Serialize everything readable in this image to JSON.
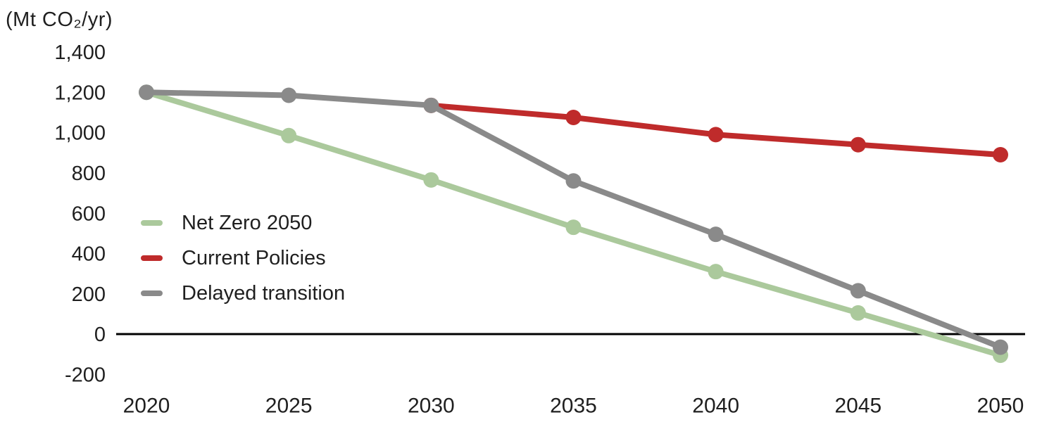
{
  "chart_data": {
    "type": "line",
    "title": "",
    "unit_label": "(Mt CO₂/yr)",
    "xlabel": "",
    "ylabel": "Mt CO₂/yr",
    "grid": false,
    "legend_position": "middle-left",
    "ylim": [
      -200,
      1400
    ],
    "xlim": [
      2020,
      2050
    ],
    "axis_color": "#000000",
    "text_color": "#1f1f1f",
    "y_ticks": [
      {
        "value": 1400,
        "label": "1,400"
      },
      {
        "value": 1200,
        "label": "1,200"
      },
      {
        "value": 1000,
        "label": "1,000"
      },
      {
        "value": 800,
        "label": "800"
      },
      {
        "value": 600,
        "label": "600"
      },
      {
        "value": 400,
        "label": "400"
      },
      {
        "value": 200,
        "label": "200"
      },
      {
        "value": 0,
        "label": "0"
      },
      {
        "value": -200,
        "label": "-200"
      }
    ],
    "x_ticks": [
      {
        "value": 2020,
        "label": "2020"
      },
      {
        "value": 2025,
        "label": "2025"
      },
      {
        "value": 2030,
        "label": "2030"
      },
      {
        "value": 2035,
        "label": "2035"
      },
      {
        "value": 2040,
        "label": "2040"
      },
      {
        "value": 2045,
        "label": "2045"
      },
      {
        "value": 2050,
        "label": "2050"
      }
    ],
    "series": [
      {
        "name": "Net Zero 2050",
        "color": "#abc99c",
        "x": [
          2020,
          2025,
          2030,
          2035,
          2040,
          2045,
          2050
        ],
        "values": [
          1200,
          985,
          765,
          530,
          310,
          105,
          -105
        ]
      },
      {
        "name": "Current Policies",
        "color": "#bf2b2b",
        "x": [
          2030,
          2035,
          2040,
          2045,
          2050
        ],
        "values": [
          1135,
          1075,
          990,
          940,
          890
        ]
      },
      {
        "name": "Delayed transition",
        "color": "#8a8a8a",
        "x": [
          2020,
          2025,
          2030,
          2035,
          2040,
          2045,
          2050
        ],
        "values": [
          1200,
          1185,
          1135,
          760,
          495,
          215,
          -65
        ]
      }
    ]
  }
}
